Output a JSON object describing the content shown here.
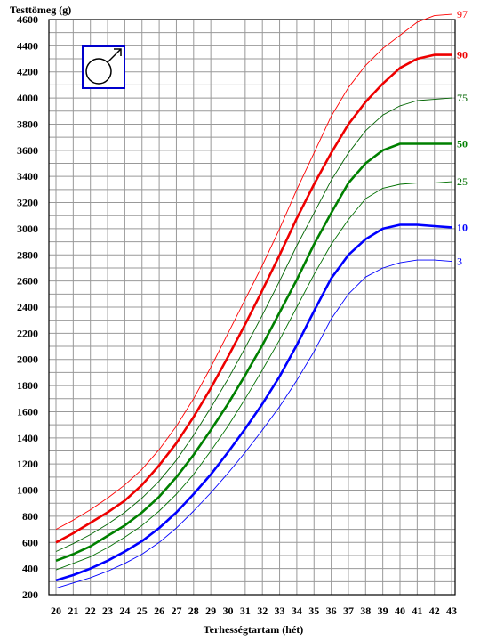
{
  "chart_data": {
    "type": "line",
    "ylabel": "Testtömeg (g)",
    "xlabel": "Terhességtartam (hét)",
    "xlim": [
      20,
      43
    ],
    "ylim": [
      200,
      4600
    ],
    "x": [
      20,
      21,
      22,
      23,
      24,
      25,
      26,
      27,
      28,
      29,
      30,
      31,
      32,
      33,
      34,
      35,
      36,
      37,
      38,
      39,
      40,
      41,
      42,
      43
    ],
    "x_ticks": [
      "20",
      "21",
      "22",
      "23",
      "24",
      "25",
      "26",
      "27",
      "28",
      "29",
      "30",
      "31",
      "32",
      "33",
      "34",
      "35",
      "36",
      "37",
      "38",
      "39",
      "40",
      "41",
      "42",
      "43"
    ],
    "y_ticks": [
      "200",
      "400",
      "600",
      "800",
      "1000",
      "1200",
      "1400",
      "1600",
      "1800",
      "2000",
      "2200",
      "2400",
      "2600",
      "2800",
      "3000",
      "3200",
      "3400",
      "3600",
      "3800",
      "4000",
      "4200",
      "4400",
      "4600"
    ],
    "grid": true,
    "legend": "right",
    "icon": "male-symbol-icon",
    "series": [
      {
        "name": "97",
        "color": "#ff0000",
        "style": "thin",
        "values": [
          700,
          770,
          850,
          940,
          1040,
          1160,
          1310,
          1490,
          1700,
          1940,
          2200,
          2460,
          2720,
          3000,
          3300,
          3580,
          3860,
          4080,
          4250,
          4380,
          4480,
          4580,
          4630,
          4640
        ]
      },
      {
        "name": "90",
        "color": "#ee0000",
        "style": "thick",
        "values": [
          600,
          670,
          750,
          830,
          920,
          1040,
          1190,
          1360,
          1560,
          1780,
          2020,
          2270,
          2530,
          2800,
          3080,
          3340,
          3580,
          3800,
          3970,
          4110,
          4230,
          4300,
          4330,
          4330
        ]
      },
      {
        "name": "75",
        "color": "#006400",
        "style": "thin",
        "values": [
          530,
          590,
          660,
          740,
          830,
          940,
          1070,
          1230,
          1420,
          1630,
          1850,
          2090,
          2340,
          2600,
          2870,
          3120,
          3370,
          3580,
          3750,
          3870,
          3940,
          3980,
          3990,
          4000
        ]
      },
      {
        "name": "50",
        "color": "#008000",
        "style": "thick",
        "values": [
          460,
          510,
          570,
          650,
          730,
          830,
          950,
          1100,
          1270,
          1460,
          1660,
          1880,
          2110,
          2360,
          2610,
          2880,
          3120,
          3350,
          3500,
          3600,
          3650,
          3650,
          3650,
          3650
        ]
      },
      {
        "name": "25",
        "color": "#007000",
        "style": "thin",
        "values": [
          390,
          440,
          490,
          560,
          640,
          730,
          840,
          970,
          1120,
          1300,
          1490,
          1700,
          1920,
          2150,
          2400,
          2650,
          2880,
          3070,
          3230,
          3310,
          3340,
          3350,
          3350,
          3360
        ]
      },
      {
        "name": "10",
        "color": "#0000ff",
        "style": "thick",
        "values": [
          310,
          350,
          400,
          460,
          530,
          610,
          710,
          830,
          970,
          1120,
          1290,
          1470,
          1660,
          1870,
          2110,
          2370,
          2620,
          2800,
          2920,
          3000,
          3030,
          3030,
          3020,
          3010
        ]
      },
      {
        "name": "3",
        "color": "#0000ff",
        "style": "thin",
        "values": [
          250,
          290,
          330,
          380,
          440,
          510,
          600,
          710,
          840,
          980,
          1130,
          1290,
          1460,
          1640,
          1840,
          2060,
          2310,
          2500,
          2630,
          2700,
          2740,
          2760,
          2760,
          2750
        ]
      }
    ]
  }
}
